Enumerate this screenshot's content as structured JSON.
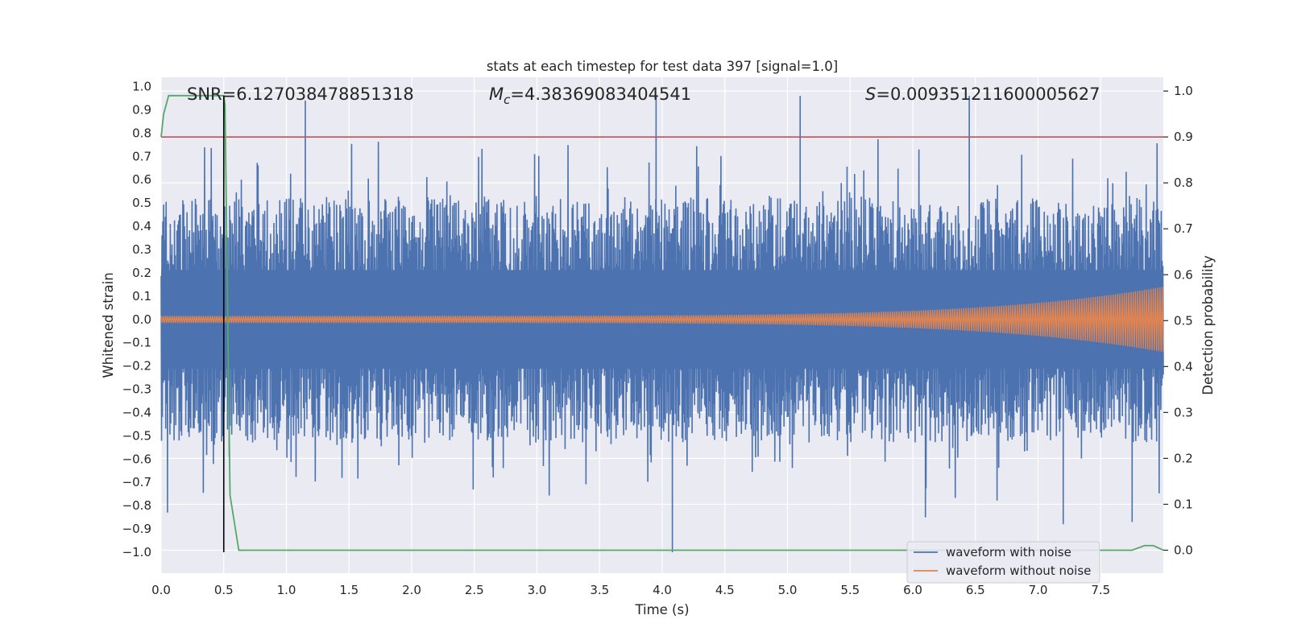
{
  "chart_data": {
    "type": "line",
    "title": "stats at each timestep for test data 397 [signal=1.0]",
    "xlabel": "Time (s)",
    "ylabel": "Whitened strain",
    "ylabel_right": "Detection probability",
    "xlim": [
      0.0,
      8.0
    ],
    "ylim": [
      -1.09,
      1.04
    ],
    "ylim_right": [
      -0.05,
      1.03
    ],
    "xticks": [
      "0.0",
      "0.5",
      "1.0",
      "1.5",
      "2.0",
      "2.5",
      "3.0",
      "3.5",
      "4.0",
      "4.5",
      "5.0",
      "5.5",
      "6.0",
      "6.5",
      "7.0",
      "7.5"
    ],
    "xtick_values": [
      0.0,
      0.5,
      1.0,
      1.5,
      2.0,
      2.5,
      3.0,
      3.5,
      4.0,
      4.5,
      5.0,
      5.5,
      6.0,
      6.5,
      7.0,
      7.5
    ],
    "yticks": [
      "1.0",
      "0.9",
      "0.8",
      "0.7",
      "0.6",
      "0.5",
      "0.4",
      "0.3",
      "0.2",
      "0.1",
      "0.0",
      "−0.1",
      "−0.2",
      "−0.3",
      "−0.4",
      "−0.5",
      "−0.6",
      "−0.7",
      "−0.8",
      "−0.9",
      "−1.0"
    ],
    "ytick_values": [
      1.0,
      0.9,
      0.8,
      0.7,
      0.6,
      0.5,
      0.4,
      0.3,
      0.2,
      0.1,
      0.0,
      -0.1,
      -0.2,
      -0.3,
      -0.4,
      -0.5,
      -0.6,
      -0.7,
      -0.8,
      -0.9,
      -1.0
    ],
    "yticks_right": [
      "1.0",
      "0.9",
      "0.8",
      "0.7",
      "0.6",
      "0.5",
      "0.4",
      "0.3",
      "0.2",
      "0.1",
      "0.0"
    ],
    "ytick_right_values": [
      1.0,
      0.9,
      0.8,
      0.7,
      0.6,
      0.5,
      0.4,
      0.3,
      0.2,
      0.1,
      0.0
    ],
    "annotations": {
      "snr": "SNR=6.127038478851318",
      "mc_symbol": "M",
      "mc_sub": "c",
      "mc_value": "=4.38369083404541",
      "s_symbol": "S",
      "s_value": "=0.009351211600005627"
    },
    "threshold": 0.9,
    "threshold_color": "#c44e52",
    "event_time": 0.5,
    "series": [
      {
        "name": "waveform with noise",
        "color": "#4c72b0",
        "envelope_upper": 0.53,
        "envelope_lower": -0.53,
        "extreme_peaks_upper": [
          [
            1.15,
            0.94
          ],
          [
            3.95,
            0.96
          ],
          [
            5.1,
            0.96
          ],
          [
            6.45,
            0.96
          ]
        ],
        "extreme_peaks_lower": [
          [
            0.05,
            -0.83
          ],
          [
            4.08,
            -1.0
          ],
          [
            6.1,
            -0.85
          ],
          [
            7.2,
            -0.88
          ],
          [
            7.75,
            -0.87
          ]
        ]
      },
      {
        "name": "waveform without noise",
        "color": "#dd8452",
        "amplitude_start": 0.015,
        "amplitude_end": 0.14,
        "t_end": 8.0
      },
      {
        "name": "detection probability",
        "color": "#55a868",
        "axis": "right",
        "x": [
          0.0,
          0.02,
          0.06,
          0.45,
          0.5,
          0.51,
          0.55,
          0.62,
          7.75,
          7.85,
          7.92,
          8.0
        ],
        "y": [
          0.9,
          0.95,
          0.99,
          0.99,
          0.99,
          0.97,
          0.12,
          0.0,
          0.0,
          0.01,
          0.01,
          0.0
        ]
      }
    ],
    "legend": {
      "position": "lower-right",
      "entries": [
        "waveform with noise",
        "waveform without noise"
      ]
    },
    "grid": true
  }
}
